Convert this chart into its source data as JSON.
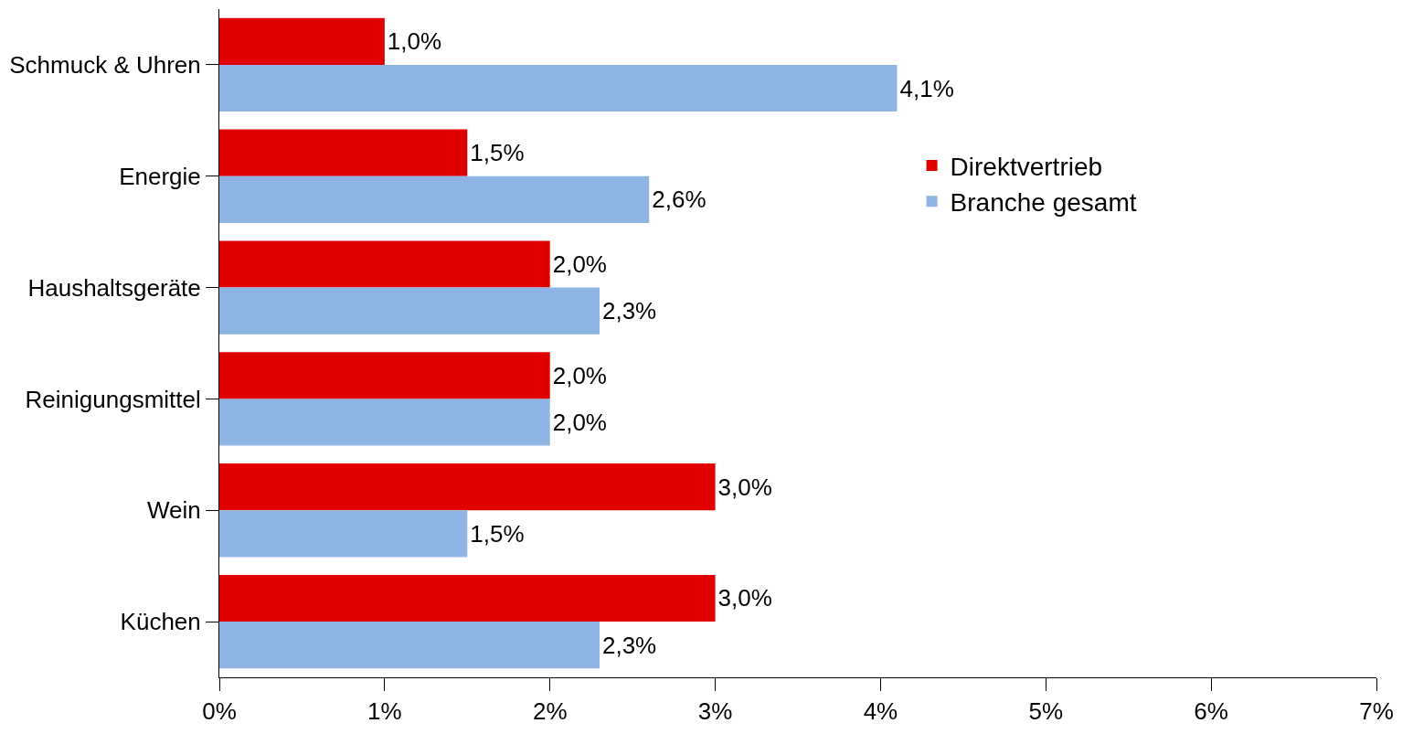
{
  "chart_data": {
    "type": "bar",
    "orientation": "horizontal",
    "categories": [
      "Schmuck & Uhren",
      "Energie",
      "Haushaltsgeräte",
      "Reinigungsmittel",
      "Wein",
      "Küchen"
    ],
    "series": [
      {
        "name": "Direktvertrieb",
        "color": "#e00000",
        "values": [
          1.0,
          1.5,
          2.0,
          2.0,
          3.0,
          3.0
        ],
        "value_labels": [
          "1,0%",
          "1,5%",
          "2,0%",
          "2,0%",
          "3,0%",
          "3,0%"
        ]
      },
      {
        "name": "Branche gesamt",
        "color": "#8db4e2",
        "values": [
          4.1,
          2.6,
          2.3,
          2.0,
          1.5,
          2.3
        ],
        "value_labels": [
          "4,1%",
          "2,6%",
          "2,3%",
          "2,0%",
          "1,5%",
          "2,3%"
        ]
      }
    ],
    "xlim": [
      0,
      7
    ],
    "xticks": [
      {
        "value": 0,
        "label": "0%"
      },
      {
        "value": 1,
        "label": "1%"
      },
      {
        "value": 2,
        "label": "2%"
      },
      {
        "value": 3,
        "label": "3%"
      },
      {
        "value": 4,
        "label": "4%"
      },
      {
        "value": 5,
        "label": "5%"
      },
      {
        "value": 6,
        "label": "6%"
      },
      {
        "value": 7,
        "label": "7%"
      }
    ],
    "legend": "right"
  }
}
